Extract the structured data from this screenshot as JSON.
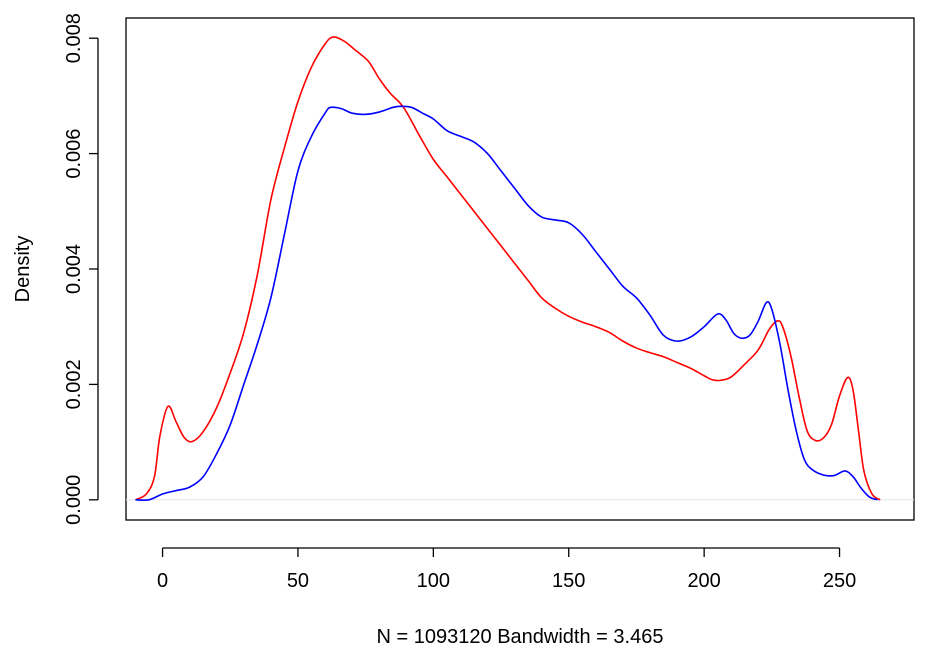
{
  "chart_data": {
    "type": "line",
    "title": "",
    "xlabel": "N = 1093120   Bandwidth = 3.465",
    "ylabel": "Density",
    "xlim": [
      -13.5,
      277.5
    ],
    "ylim": [
      -0.00035,
      0.00835
    ],
    "x_ticks": [
      0,
      50,
      100,
      150,
      200,
      250
    ],
    "x_tick_labels": [
      "0",
      "50",
      "100",
      "150",
      "200",
      "250"
    ],
    "y_ticks": [
      0,
      0.002,
      0.004,
      0.006,
      0.008
    ],
    "y_tick_labels": [
      "0.000",
      "0.002",
      "0.004",
      "0.006",
      "0.008"
    ],
    "grid": false,
    "zero_line": true,
    "series": [
      {
        "color": "#ff0000",
        "points": [
          [
            -10,
            0.0
          ],
          [
            -6,
            0.0001
          ],
          [
            -3,
            0.0004
          ],
          [
            -1,
            0.0011
          ],
          [
            2,
            0.00162
          ],
          [
            5,
            0.00135
          ],
          [
            8,
            0.00108
          ],
          [
            11,
            0.00101
          ],
          [
            15,
            0.00118
          ],
          [
            20,
            0.0016
          ],
          [
            25,
            0.0022
          ],
          [
            30,
            0.0029
          ],
          [
            35,
            0.0039
          ],
          [
            40,
            0.0052
          ],
          [
            45,
            0.0061
          ],
          [
            50,
            0.0069
          ],
          [
            55,
            0.0075
          ],
          [
            60,
            0.0079
          ],
          [
            63,
            0.00802
          ],
          [
            67,
            0.00795
          ],
          [
            71,
            0.0078
          ],
          [
            76,
            0.0076
          ],
          [
            80,
            0.0073
          ],
          [
            84,
            0.00705
          ],
          [
            89,
            0.0068
          ],
          [
            95,
            0.0063
          ],
          [
            100,
            0.0059
          ],
          [
            105,
            0.0056
          ],
          [
            110,
            0.0053
          ],
          [
            115,
            0.005
          ],
          [
            120,
            0.0047
          ],
          [
            125,
            0.0044
          ],
          [
            130,
            0.0041
          ],
          [
            135,
            0.0038
          ],
          [
            140,
            0.0035
          ],
          [
            145,
            0.00332
          ],
          [
            150,
            0.00318
          ],
          [
            155,
            0.00308
          ],
          [
            160,
            0.003
          ],
          [
            165,
            0.0029
          ],
          [
            170,
            0.00275
          ],
          [
            175,
            0.00263
          ],
          [
            180,
            0.00255
          ],
          [
            185,
            0.00248
          ],
          [
            190,
            0.00238
          ],
          [
            195,
            0.00228
          ],
          [
            200,
            0.00215
          ],
          [
            203,
            0.00208
          ],
          [
            206,
            0.00207
          ],
          [
            210,
            0.00213
          ],
          [
            215,
            0.00235
          ],
          [
            220,
            0.0026
          ],
          [
            224,
            0.00295
          ],
          [
            227,
            0.0031
          ],
          [
            229,
            0.003
          ],
          [
            232,
            0.0025
          ],
          [
            235,
            0.0018
          ],
          [
            238,
            0.0012
          ],
          [
            241,
            0.00103
          ],
          [
            244,
            0.00107
          ],
          [
            247,
            0.0013
          ],
          [
            250,
            0.0018
          ],
          [
            253,
            0.00212
          ],
          [
            255,
            0.0019
          ],
          [
            257,
            0.0012
          ],
          [
            259,
            0.0005
          ],
          [
            262,
            0.0001
          ],
          [
            265,
            0.0
          ]
        ]
      },
      {
        "color": "#0000ff",
        "points": [
          [
            -10,
            0.0
          ],
          [
            -5,
            0.0
          ],
          [
            0,
            0.0001
          ],
          [
            5,
            0.00016
          ],
          [
            10,
            0.00022
          ],
          [
            15,
            0.0004
          ],
          [
            20,
            0.0008
          ],
          [
            25,
            0.0013
          ],
          [
            30,
            0.002
          ],
          [
            35,
            0.0027
          ],
          [
            40,
            0.0035
          ],
          [
            45,
            0.0046
          ],
          [
            50,
            0.0057
          ],
          [
            55,
            0.0063
          ],
          [
            60,
            0.0067
          ],
          [
            62,
            0.0068
          ],
          [
            66,
            0.00678
          ],
          [
            70,
            0.0067
          ],
          [
            75,
            0.00668
          ],
          [
            80,
            0.00672
          ],
          [
            85,
            0.0068
          ],
          [
            88,
            0.00682
          ],
          [
            92,
            0.0068
          ],
          [
            96,
            0.0067
          ],
          [
            100,
            0.0066
          ],
          [
            105,
            0.0064
          ],
          [
            110,
            0.0063
          ],
          [
            115,
            0.0062
          ],
          [
            120,
            0.006
          ],
          [
            125,
            0.0057
          ],
          [
            130,
            0.0054
          ],
          [
            135,
            0.0051
          ],
          [
            140,
            0.0049
          ],
          [
            145,
            0.00485
          ],
          [
            150,
            0.0048
          ],
          [
            155,
            0.0046
          ],
          [
            160,
            0.0043
          ],
          [
            165,
            0.004
          ],
          [
            170,
            0.0037
          ],
          [
            175,
            0.0035
          ],
          [
            180,
            0.0032
          ],
          [
            185,
            0.00285
          ],
          [
            190,
            0.00275
          ],
          [
            195,
            0.00282
          ],
          [
            200,
            0.003
          ],
          [
            205,
            0.00322
          ],
          [
            208,
            0.00312
          ],
          [
            211,
            0.00288
          ],
          [
            214,
            0.0028
          ],
          [
            217,
            0.00286
          ],
          [
            220,
            0.0031
          ],
          [
            223,
            0.00342
          ],
          [
            225,
            0.0033
          ],
          [
            228,
            0.0027
          ],
          [
            231,
            0.0019
          ],
          [
            234,
            0.0012
          ],
          [
            237,
            0.0007
          ],
          [
            240,
            0.00052
          ],
          [
            244,
            0.00043
          ],
          [
            248,
            0.00042
          ],
          [
            252,
            0.0005
          ],
          [
            255,
            0.0004
          ],
          [
            258,
            0.0002
          ],
          [
            261,
            5e-05
          ],
          [
            264,
            0.0
          ]
        ]
      }
    ]
  }
}
